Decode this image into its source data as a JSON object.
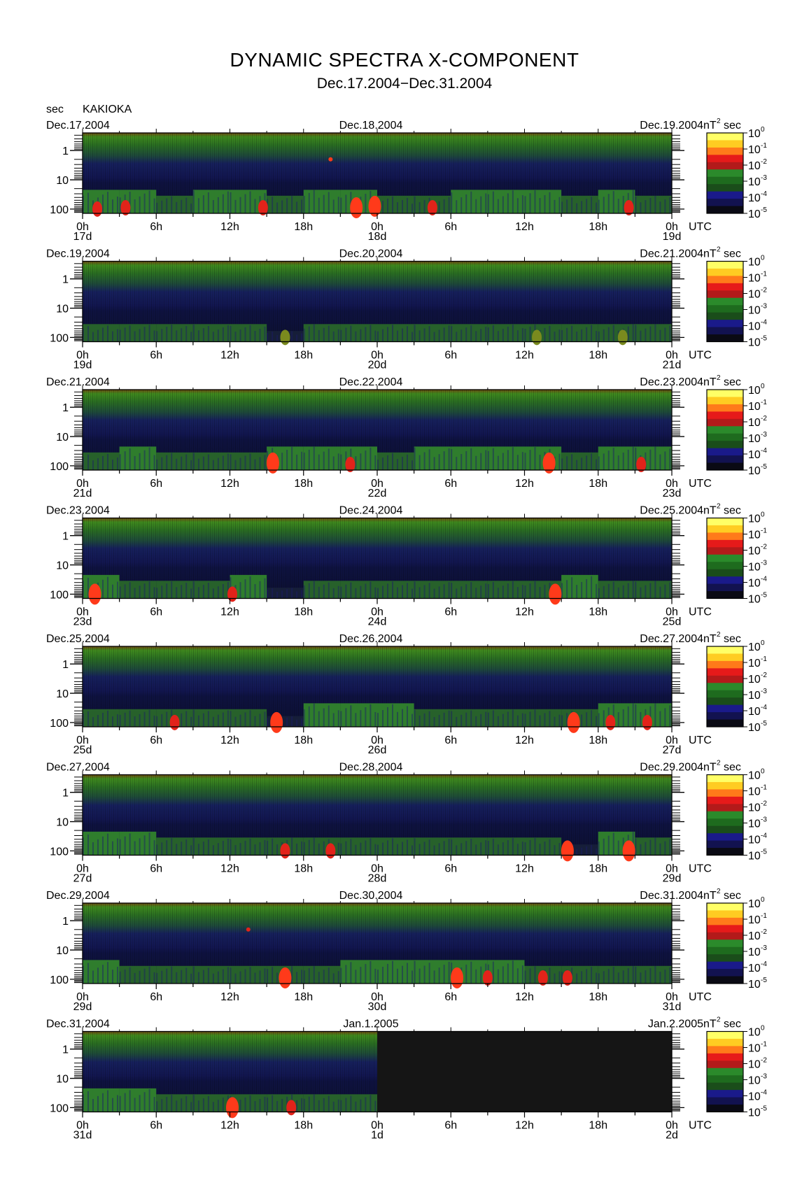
{
  "title": "DYNAMIC SPECTRA X-COMPONENT",
  "subtitle": "Dec.17.2004−Dec.31.2004",
  "y_unit": "sec",
  "station": "KAKIOKA",
  "colorbar_unit": "nT",
  "colorbar_unit_exp": "2",
  "colorbar_unit_suffix": "sec",
  "colorbar_levels": [
    {
      "base": "10",
      "exp": "0"
    },
    {
      "base": "10",
      "exp": "-1"
    },
    {
      "base": "10",
      "exp": "-2"
    },
    {
      "base": "10",
      "exp": "-3"
    },
    {
      "base": "10",
      "exp": "-4"
    },
    {
      "base": "10",
      "exp": "-5"
    }
  ],
  "colorbar_colors": [
    "#ffff66",
    "#ffcc22",
    "#ff7a1a",
    "#e61a1a",
    "#b31a1a",
    "#2b8a2b",
    "#1e6b1e",
    "#1a4d1a",
    "#1a1a8a",
    "#121250",
    "#0a0a14"
  ],
  "x_tick_labels": [
    "0h",
    "6h",
    "12h",
    "18h",
    "0h",
    "6h",
    "12h",
    "18h",
    "0h"
  ],
  "x_axis_unit": "UTC",
  "y_tick_labels": [
    "1",
    "10",
    "100"
  ],
  "chart_data": [
    {
      "type": "heatmap",
      "date_left": "Dec.17.2004",
      "date_mid": "Dec.18.2004",
      "date_right": "Dec.19.2004",
      "day_left": "17d",
      "day_mid": "18d",
      "day_right": "19d",
      "y_scale": "log",
      "ylim_sec": [
        1,
        100
      ],
      "x_range_hours": [
        0,
        48
      ],
      "data_until_hour": 48,
      "activity": [
        2,
        2,
        1,
        2,
        2,
        1,
        2,
        2,
        1,
        1,
        2,
        2,
        2,
        1,
        2,
        1
      ],
      "bursts": [
        {
          "hour": 1.2,
          "period_sec": 100,
          "level": 3
        },
        {
          "hour": 3.5,
          "period_sec": 90,
          "level": 3
        },
        {
          "hour": 14.7,
          "period_sec": 90,
          "level": 3
        },
        {
          "hour": 22.3,
          "period_sec": 90,
          "level": 4
        },
        {
          "hour": 23.8,
          "period_sec": 80,
          "level": 4
        },
        {
          "hour": 20.2,
          "period_sec": 2,
          "level": 4
        },
        {
          "hour": 28.5,
          "period_sec": 90,
          "level": 3
        },
        {
          "hour": 44.5,
          "period_sec": 90,
          "level": 3
        }
      ]
    },
    {
      "type": "heatmap",
      "date_left": "Dec.19.2004",
      "date_mid": "Dec.20.2004",
      "date_right": "Dec.21.2004",
      "day_left": "19d",
      "day_mid": "20d",
      "day_right": "21d",
      "y_scale": "log",
      "ylim_sec": [
        1,
        100
      ],
      "x_range_hours": [
        0,
        48
      ],
      "data_until_hour": 48,
      "activity": [
        1,
        1,
        1,
        1,
        1,
        0,
        1,
        1,
        1,
        1,
        1,
        1,
        1,
        1,
        1,
        1
      ],
      "bursts": [
        {
          "hour": 16.5,
          "period_sec": 100,
          "level": 2
        },
        {
          "hour": 37.0,
          "period_sec": 100,
          "level": 2
        },
        {
          "hour": 44.0,
          "period_sec": 100,
          "level": 2
        }
      ]
    },
    {
      "type": "heatmap",
      "date_left": "Dec.21.2004",
      "date_mid": "Dec.22.2004",
      "date_right": "Dec.23.2004",
      "day_left": "21d",
      "day_mid": "22d",
      "day_right": "23d",
      "y_scale": "log",
      "ylim_sec": [
        1,
        100
      ],
      "x_range_hours": [
        0,
        48
      ],
      "data_until_hour": 48,
      "activity": [
        1,
        2,
        1,
        1,
        1,
        2,
        2,
        2,
        1,
        2,
        2,
        2,
        2,
        1,
        2,
        2
      ],
      "bursts": [
        {
          "hour": 15.5,
          "period_sec": 80,
          "level": 4
        },
        {
          "hour": 21.8,
          "period_sec": 90,
          "level": 3
        },
        {
          "hour": 38.0,
          "period_sec": 80,
          "level": 4
        },
        {
          "hour": 45.5,
          "period_sec": 90,
          "level": 3
        }
      ]
    },
    {
      "type": "heatmap",
      "date_left": "Dec.23.2004",
      "date_mid": "Dec.24.2004",
      "date_right": "Dec.25.2004",
      "day_left": "23d",
      "day_mid": "24d",
      "day_right": "25d",
      "y_scale": "log",
      "ylim_sec": [
        1,
        100
      ],
      "x_range_hours": [
        0,
        48
      ],
      "data_until_hour": 48,
      "activity": [
        2,
        1,
        1,
        1,
        2,
        0,
        1,
        1,
        1,
        1,
        1,
        1,
        1,
        2,
        1,
        1
      ],
      "bursts": [
        {
          "hour": 1.0,
          "period_sec": 100,
          "level": 4
        },
        {
          "hour": 12.2,
          "period_sec": 100,
          "level": 3
        },
        {
          "hour": 38.5,
          "period_sec": 100,
          "level": 4
        }
      ]
    },
    {
      "type": "heatmap",
      "date_left": "Dec.25.2004",
      "date_mid": "Dec.26.2004",
      "date_right": "Dec.27.2004",
      "day_left": "25d",
      "day_mid": "26d",
      "day_right": "27d",
      "y_scale": "log",
      "ylim_sec": [
        1,
        100
      ],
      "x_range_hours": [
        0,
        48
      ],
      "data_until_hour": 48,
      "activity": [
        1,
        1,
        1,
        1,
        1,
        0,
        2,
        2,
        2,
        1,
        1,
        1,
        1,
        1,
        2,
        2
      ],
      "bursts": [
        {
          "hour": 7.5,
          "period_sec": 100,
          "level": 3
        },
        {
          "hour": 15.8,
          "period_sec": 100,
          "level": 4
        },
        {
          "hour": 40.0,
          "period_sec": 100,
          "level": 4
        },
        {
          "hour": 43.0,
          "period_sec": 100,
          "level": 3
        },
        {
          "hour": 46.0,
          "period_sec": 100,
          "level": 3
        }
      ]
    },
    {
      "type": "heatmap",
      "date_left": "Dec.27.2004",
      "date_mid": "Dec.28.2004",
      "date_right": "Dec.29.2004",
      "day_left": "27d",
      "day_mid": "28d",
      "day_right": "29d",
      "y_scale": "log",
      "ylim_sec": [
        1,
        100
      ],
      "x_range_hours": [
        0,
        48
      ],
      "data_until_hour": 48,
      "activity": [
        2,
        2,
        1,
        1,
        1,
        1,
        1,
        1,
        1,
        1,
        1,
        1,
        1,
        0,
        2,
        1
      ],
      "bursts": [
        {
          "hour": 16.5,
          "period_sec": 100,
          "level": 3
        },
        {
          "hour": 20.2,
          "period_sec": 100,
          "level": 3
        },
        {
          "hour": 39.5,
          "period_sec": 100,
          "level": 4
        },
        {
          "hour": 44.5,
          "period_sec": 100,
          "level": 4
        }
      ]
    },
    {
      "type": "heatmap",
      "date_left": "Dec.29.2004",
      "date_mid": "Dec.30.2004",
      "date_right": "Dec.31.2004",
      "day_left": "29d",
      "day_mid": "30d",
      "day_right": "31d",
      "y_scale": "log",
      "ylim_sec": [
        1,
        100
      ],
      "x_range_hours": [
        0,
        48
      ],
      "data_until_hour": 48,
      "activity": [
        2,
        1,
        1,
        1,
        1,
        1,
        1,
        2,
        2,
        2,
        2,
        2,
        1,
        1,
        1,
        1
      ],
      "bursts": [
        {
          "hour": 16.5,
          "period_sec": 90,
          "level": 4
        },
        {
          "hour": 30.5,
          "period_sec": 90,
          "level": 4
        },
        {
          "hour": 33.0,
          "period_sec": 90,
          "level": 3
        },
        {
          "hour": 37.5,
          "period_sec": 90,
          "level": 3
        },
        {
          "hour": 39.5,
          "period_sec": 90,
          "level": 3
        },
        {
          "hour": 13.5,
          "period_sec": 2,
          "level": 3
        }
      ]
    },
    {
      "type": "heatmap",
      "date_left": "Dec.31.2004",
      "date_mid": "Jan.1.2005",
      "date_right": "Jan.2.2005",
      "day_left": "31d",
      "day_mid": "1d",
      "day_right": "2d",
      "y_scale": "log",
      "ylim_sec": [
        1,
        100
      ],
      "x_range_hours": [
        0,
        48
      ],
      "data_until_hour": 24,
      "activity": [
        2,
        2,
        1,
        1,
        1,
        1,
        1,
        1
      ],
      "bursts": [
        {
          "hour": 12.2,
          "period_sec": 100,
          "level": 4
        },
        {
          "hour": 17.0,
          "period_sec": 100,
          "level": 3
        }
      ]
    }
  ]
}
